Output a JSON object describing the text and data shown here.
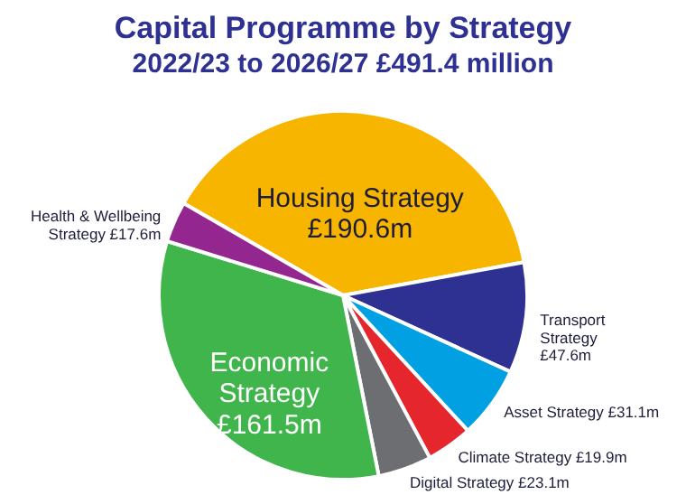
{
  "chart_data": {
    "type": "pie",
    "title": "Capital Programme by Strategy",
    "subtitle": "2022/23 to 2026/27 £491.4 million",
    "categories": [
      "Housing Strategy",
      "Transport Strategy",
      "Asset Strategy",
      "Climate Strategy",
      "Digital Strategy",
      "Economic Strategy",
      "Health & Wellbeing Strategy"
    ],
    "values": [
      190.6,
      47.6,
      31.1,
      19.9,
      23.1,
      161.5,
      17.6
    ],
    "colors": [
      "#f7b500",
      "#2e3192",
      "#00a0e3",
      "#e5262d",
      "#6d6e71",
      "#3fb54b",
      "#93278f"
    ],
    "value_labels": [
      "£190.6m",
      "£47.6m",
      "£31.1m",
      "£19.9m",
      "£23.1m",
      "£161.5m",
      "£17.6m"
    ]
  }
}
